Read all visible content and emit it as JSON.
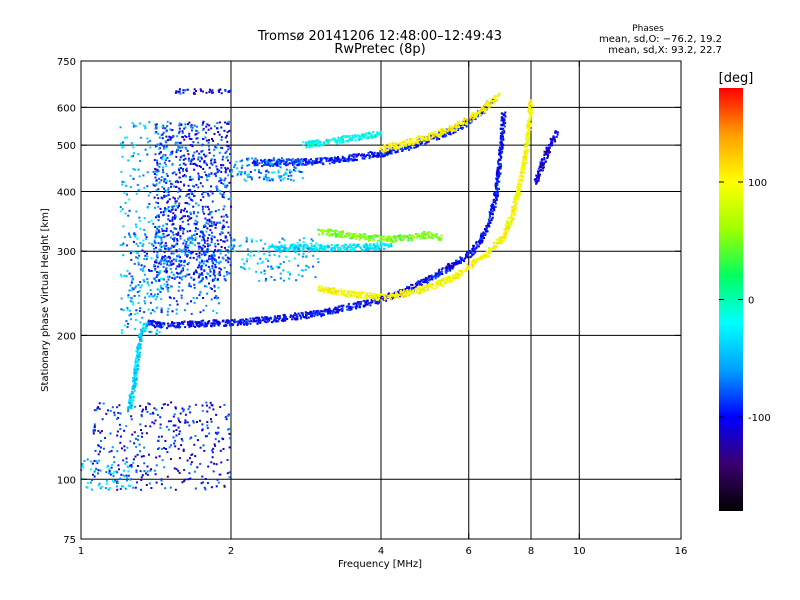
{
  "chart_data": {
    "type": "scatter",
    "title": "Tromsø 20141206 12:48:00–12:49:43",
    "subtitle": "RwPretec (8p)",
    "xlabel": "Frequency [MHz]",
    "ylabel": "Stationary phase Virtual Height [km]",
    "x_scale": "log",
    "y_scale": "log",
    "xlim": [
      1,
      16
    ],
    "ylim": [
      75,
      750
    ],
    "x_ticks": [
      1,
      2,
      4,
      6,
      8,
      10,
      16
    ],
    "y_ticks": [
      75,
      100,
      200,
      300,
      400,
      500,
      600,
      750
    ],
    "x_gridlines": [
      2,
      4,
      6,
      8,
      10
    ],
    "y_gridlines": [
      100,
      200,
      300,
      400,
      500,
      600
    ],
    "grid": true,
    "phase_info": {
      "title": "Phases",
      "line1": "mean, sd,O: −76.2, 19.2",
      "line2": "mean, sd,X:  93.2, 22.7"
    },
    "colorbar": {
      "label": "[deg]",
      "range": [
        -180,
        180
      ],
      "ticks": [
        100,
        0,
        -100
      ],
      "colors": [
        "#000000",
        "#3a0070",
        "#0000ff",
        "#00a0ff",
        "#00ffff",
        "#00ff60",
        "#a0ff00",
        "#ffff00",
        "#ffa000",
        "#ff0000"
      ]
    },
    "traces": [
      {
        "name": "",
        "phase": -100,
        "points": [
          [
            1.35,
            212
          ],
          [
            1.5,
            210
          ],
          [
            1.8,
            212
          ],
          [
            2.1,
            213
          ],
          [
            2.5,
            217
          ],
          [
            3.0,
            222
          ],
          [
            3.5,
            230
          ],
          [
            4.0,
            238
          ],
          [
            4.5,
            248
          ],
          [
            5.0,
            262
          ],
          [
            5.5,
            278
          ],
          [
            6.0,
            295
          ],
          [
            6.3,
            312
          ],
          [
            6.6,
            345
          ],
          [
            6.8,
            390
          ],
          [
            6.9,
            440
          ],
          [
            7.0,
            520
          ],
          [
            7.05,
            580
          ]
        ]
      },
      {
        "name": "",
        "phase": 100,
        "points": [
          [
            3.0,
            250
          ],
          [
            3.5,
            244
          ],
          [
            4.0,
            240
          ],
          [
            4.5,
            245
          ],
          [
            5.0,
            252
          ],
          [
            5.5,
            262
          ],
          [
            6.0,
            278
          ],
          [
            6.5,
            295
          ],
          [
            7.0,
            318
          ],
          [
            7.3,
            350
          ],
          [
            7.5,
            390
          ],
          [
            7.7,
            440
          ],
          [
            7.85,
            500
          ],
          [
            7.95,
            560
          ],
          [
            8.0,
            620
          ]
        ]
      },
      {
        "name": "",
        "phase": -95,
        "points": [
          [
            2.2,
            458
          ],
          [
            2.6,
            460
          ],
          [
            3.0,
            462
          ],
          [
            3.5,
            470
          ],
          [
            4.0,
            480
          ],
          [
            4.5,
            495
          ],
          [
            5.0,
            515
          ],
          [
            5.5,
            535
          ],
          [
            6.0,
            560
          ],
          [
            6.4,
            590
          ],
          [
            6.7,
            620
          ]
        ]
      },
      {
        "name": "",
        "phase": 105,
        "points": [
          [
            4.0,
            490
          ],
          [
            4.5,
            505
          ],
          [
            5.0,
            520
          ],
          [
            5.5,
            540
          ],
          [
            6.0,
            565
          ],
          [
            6.5,
            600
          ],
          [
            6.9,
            640
          ]
        ]
      },
      {
        "name": "",
        "phase": -20,
        "points": [
          [
            2.8,
            500
          ],
          [
            3.2,
            510
          ],
          [
            3.6,
            520
          ],
          [
            4.0,
            530
          ]
        ]
      },
      {
        "name": "",
        "phase": -30,
        "points": [
          [
            2.4,
            305
          ],
          [
            2.8,
            305
          ],
          [
            3.2,
            305
          ],
          [
            3.8,
            306
          ],
          [
            4.2,
            308
          ]
        ]
      },
      {
        "name": "",
        "phase": 50,
        "points": [
          [
            3.0,
            330
          ],
          [
            3.4,
            325
          ],
          [
            3.8,
            320
          ],
          [
            4.2,
            318
          ],
          [
            4.6,
            320
          ],
          [
            5.0,
            325
          ],
          [
            5.3,
            320
          ]
        ]
      },
      {
        "name": "",
        "phase": -110,
        "points": [
          [
            8.2,
            420
          ],
          [
            8.4,
            450
          ],
          [
            8.6,
            480
          ],
          [
            8.8,
            510
          ],
          [
            9.0,
            530
          ]
        ]
      },
      {
        "name": "",
        "phase": -40,
        "points": [
          [
            1.25,
            140
          ],
          [
            1.28,
            160
          ],
          [
            1.3,
            180
          ],
          [
            1.32,
            200
          ],
          [
            1.35,
            210
          ]
        ]
      }
    ],
    "clusters": [
      {
        "name": "",
        "phase": -90,
        "x_range": [
          1.4,
          2.0
        ],
        "y_range": [
          260,
          560
        ],
        "count": 900
      },
      {
        "name": "",
        "phase": -75,
        "x_range": [
          1.25,
          1.9
        ],
        "y_range": [
          220,
          330
        ],
        "count": 250
      },
      {
        "name": "",
        "phase": -50,
        "x_range": [
          1.2,
          1.5
        ],
        "y_range": [
          200,
          560
        ],
        "count": 250
      },
      {
        "name": "",
        "phase": -95,
        "x_range": [
          1.05,
          2.0
        ],
        "y_range": [
          95,
          145
        ],
        "count": 350
      },
      {
        "name": "",
        "phase": -40,
        "x_range": [
          1.0,
          1.3
        ],
        "y_range": [
          95,
          110
        ],
        "count": 60
      },
      {
        "name": "",
        "phase": -60,
        "x_range": [
          2.0,
          2.8
        ],
        "y_range": [
          420,
          470
        ],
        "count": 120
      },
      {
        "name": "",
        "phase": -95,
        "x_range": [
          1.55,
          2.0
        ],
        "y_range": [
          640,
          655
        ],
        "count": 40
      },
      {
        "name": "",
        "phase": -50,
        "x_range": [
          2.0,
          3.0
        ],
        "y_range": [
          260,
          320
        ],
        "count": 120
      }
    ]
  }
}
